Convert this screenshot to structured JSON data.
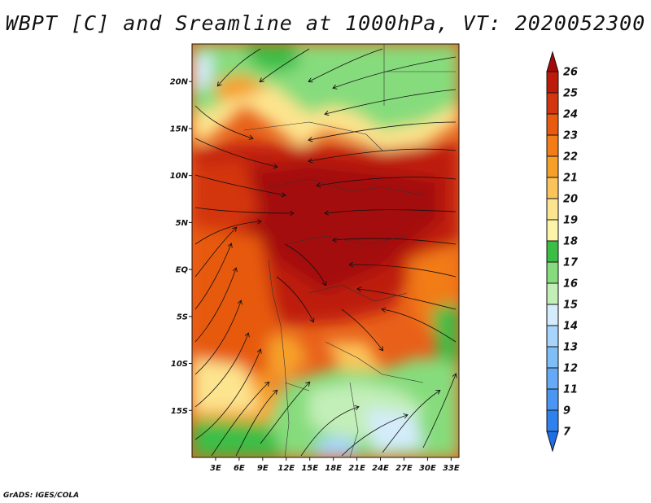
{
  "title": "WBPT [C] and Sreamline at 1000hPa, VT: 2020052300",
  "credit": "GrADS: IGES/COLA",
  "chart_data": {
    "type": "heatmap",
    "title": "WBPT [C] and Sreamline at 1000hPa, VT: 2020052300",
    "variable": "Wet-bulb potential temperature",
    "units": "C",
    "level": "1000hPa",
    "valid_time": "2020052300",
    "overlay": "streamlines",
    "lon_range": [
      0,
      34
    ],
    "lat_range": [
      -20,
      24
    ],
    "lon_ticks": [
      "3E",
      "6E",
      "9E",
      "12E",
      "15E",
      "18E",
      "21E",
      "24E",
      "27E",
      "30E",
      "33E"
    ],
    "lon_values": [
      3,
      6,
      9,
      12,
      15,
      18,
      21,
      24,
      27,
      30,
      33
    ],
    "lat_ticks": [
      "20N",
      "15N",
      "10N",
      "5N",
      "EQ",
      "5S",
      "10S",
      "15S"
    ],
    "lat_values": [
      20,
      15,
      10,
      5,
      0,
      -5,
      -10,
      -15
    ],
    "colorbar": {
      "levels": [
        7,
        9,
        11,
        12,
        13,
        14,
        15,
        16,
        17,
        18,
        19,
        20,
        21,
        22,
        23,
        24,
        25,
        26
      ],
      "colors": [
        "#1e6ee6",
        "#2f82ee",
        "#4a96f2",
        "#64aaf6",
        "#80bef8",
        "#a6d4fa",
        "#d4ecfb",
        "#c2eeb8",
        "#86dc7c",
        "#3cbe46",
        "#fcf5a8",
        "#fde48e",
        "#fbc45a",
        "#f6a02a",
        "#f27c18",
        "#e75a10",
        "#d3360e",
        "#be1a0a",
        "#a40a0a"
      ]
    }
  }
}
